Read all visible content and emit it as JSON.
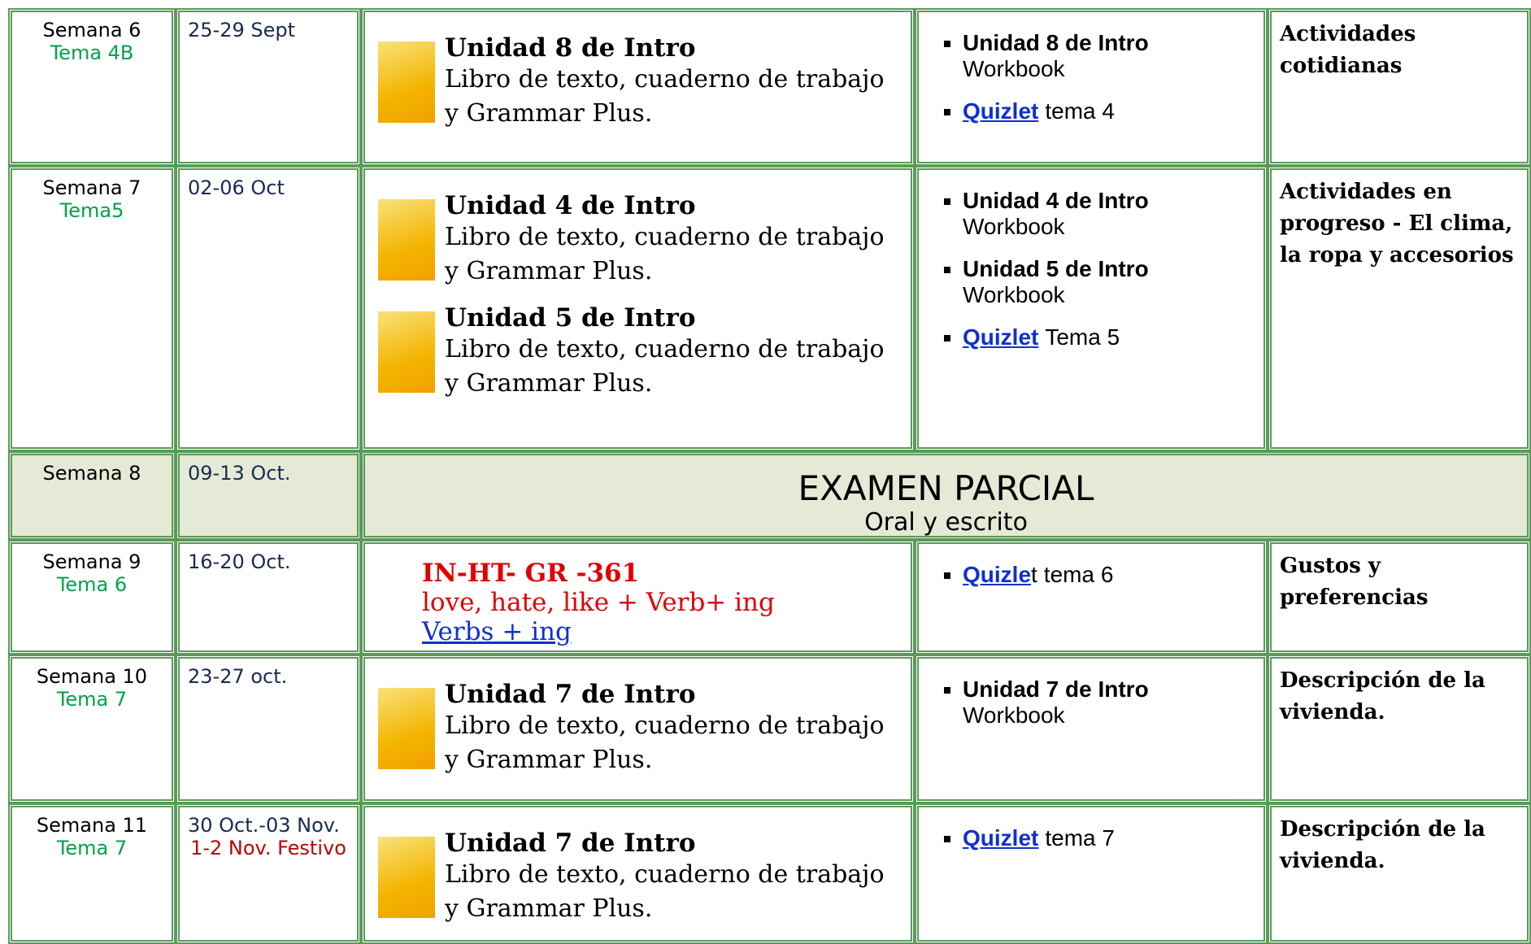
{
  "table": {
    "rows": [
      {
        "week": "Semana 6",
        "theme": "Tema 4B",
        "dates": "25-29 Sept",
        "content": [
          {
            "title": "Unidad 8 de Intro",
            "text": "Libro de texto, cuaderno de trabajo y Grammar Plus."
          }
        ],
        "tasks": [
          {
            "title": "Unidad 8 de Intro",
            "text": "Workbook"
          },
          {
            "link": "Quizlet",
            "text": "tema 4"
          }
        ],
        "topic": "Actividades cotidianas"
      },
      {
        "week": "Semana 7",
        "theme": "Tema5",
        "dates": "02-06 Oct",
        "content": [
          {
            "title": "Unidad 4 de Intro",
            "text": "Libro de texto, cuaderno de trabajo y Grammar Plus."
          },
          {
            "title": "Unidad 5 de Intro",
            "text": "Libro de texto, cuaderno de trabajo y Grammar Plus."
          }
        ],
        "tasks": [
          {
            "title": "Unidad 4 de Intro",
            "text": "Workbook"
          },
          {
            "title": "Unidad 5 de Intro",
            "text": "Workbook"
          },
          {
            "link": "Quizlet",
            "text": "Tema 5"
          }
        ],
        "topic": "Actividades en progreso - El clima, la ropa y accesorios"
      },
      {
        "week": "Semana 8",
        "dates": "09-13 Oct.",
        "exam": {
          "title": "EXAMEN PARCIAL",
          "subtitle": "Oral y escrito"
        }
      },
      {
        "week": "Semana 9",
        "theme": "Tema 6",
        "dates": "16-20 Oct.",
        "grammar": {
          "code": "IN-HT- GR -361",
          "text": "love, hate, like + Verb+ ing",
          "link": "Verbs + ing"
        },
        "tasks": [
          {
            "link": "Quizle",
            "suffix": "t",
            "text": "tema 6"
          }
        ],
        "topic": "Gustos y preferencias"
      },
      {
        "week": "Semana  10",
        "theme": "Tema 7",
        "dates": "23-27 oct.",
        "content": [
          {
            "title": "Unidad 7 de Intro",
            "text": "Libro de texto, cuaderno de trabajo y Grammar Plus."
          }
        ],
        "tasks": [
          {
            "title": "Unidad 7 de Intro",
            "text": "Workbook"
          }
        ],
        "topic": "Descripción de la vivienda."
      },
      {
        "week": "Semana 11",
        "theme": "Tema 7",
        "dates": "30 Oct.-03 Nov.",
        "note": "1-2 Nov. Festivo",
        "content": [
          {
            "title": "Unidad 7 de Intro",
            "text": "Libro de texto, cuaderno de trabajo y Grammar Plus."
          }
        ],
        "tasks": [
          {
            "link": "Quizlet",
            "text": "tema 7"
          }
        ],
        "topic": "Descripción de la vivienda."
      }
    ]
  }
}
